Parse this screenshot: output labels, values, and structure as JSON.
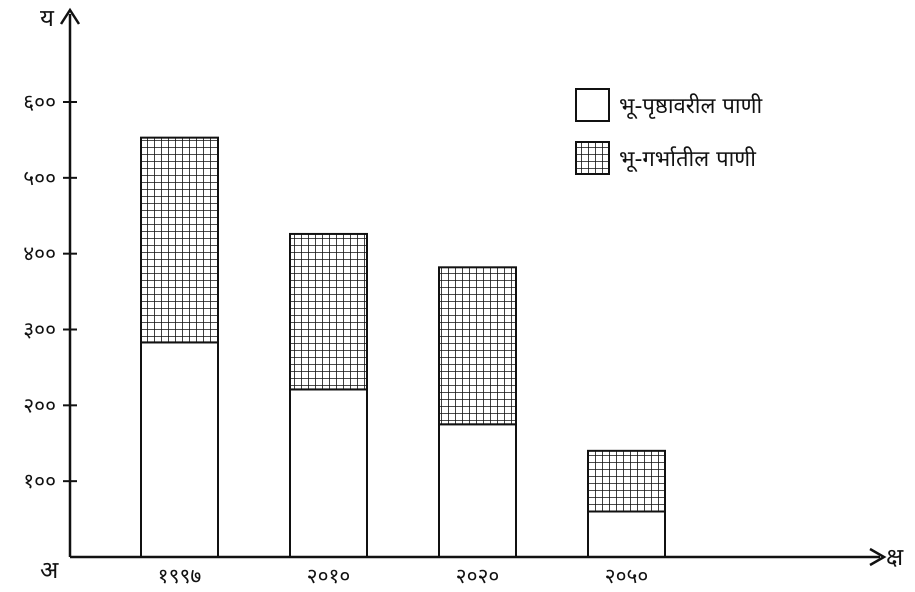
{
  "chart_data": {
    "type": "bar",
    "stacked": true,
    "title": "",
    "x_axis_letter": "क्ष",
    "y_axis_letter": "य",
    "origin_label": "अ",
    "categories": [
      "१९९७",
      "२०१०",
      "२०२०",
      "२०५०"
    ],
    "series": [
      {
        "name": "भू-पृष्ठावरील पाणी",
        "pattern": "plain",
        "values": [
          283,
          221,
          175,
          60
        ]
      },
      {
        "name": "भू-गर्भातील पाणी",
        "pattern": "grid",
        "values": [
          270,
          205,
          207,
          80
        ]
      }
    ],
    "y_ticks": [
      {
        "value": 100,
        "label": "१००"
      },
      {
        "value": 200,
        "label": "२००"
      },
      {
        "value": 300,
        "label": "३००"
      },
      {
        "value": 400,
        "label": "४००"
      },
      {
        "value": 500,
        "label": "५००"
      },
      {
        "value": 600,
        "label": "६००"
      }
    ],
    "ylim": [
      0,
      600
    ],
    "grid": false,
    "legend_position": "top-right",
    "colors": {
      "ink": "#111111",
      "fill": "#ffffff"
    }
  }
}
